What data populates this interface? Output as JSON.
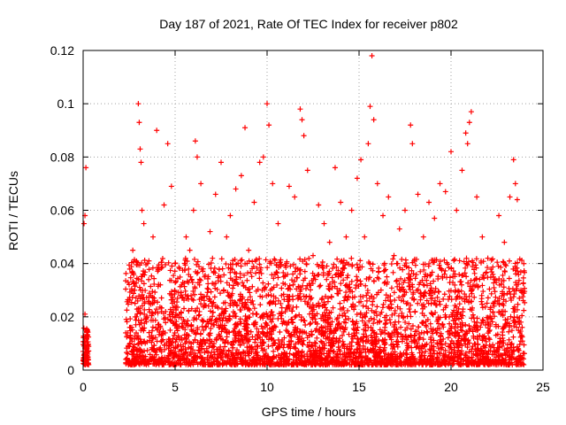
{
  "chart_data": {
    "type": "scatter",
    "title": "Day 187 of 2021, Rate Of TEC Index for receiver p802",
    "xlabel": "GPS time / hours",
    "ylabel": "ROTI / TECUs",
    "xlim": [
      0,
      25
    ],
    "ylim": [
      0,
      0.12
    ],
    "xticks": [
      0,
      5,
      10,
      15,
      20,
      25
    ],
    "xtick_labels": [
      "0",
      "5",
      "10",
      "15",
      "20",
      "25"
    ],
    "yticks": [
      0,
      0.02,
      0.04,
      0.06,
      0.08,
      0.1,
      0.12
    ],
    "ytick_labels": [
      "0",
      "0.02",
      "0.04",
      "0.06",
      "0.08",
      "0.1",
      "0.12"
    ],
    "grid": true,
    "marker": "+",
    "color": "#ff0000",
    "series": [
      {
        "points": [
          [
            0.05,
            0.009
          ],
          [
            0.1,
            0.005
          ],
          [
            0.15,
            0.012
          ],
          [
            0.2,
            0.015
          ],
          [
            0.1,
            0.021
          ],
          [
            0.05,
            0.055
          ],
          [
            0.1,
            0.058
          ],
          [
            0.15,
            0.076
          ],
          [
            0.2,
            0.008
          ],
          [
            0.25,
            0.006
          ],
          [
            2.6,
            0.012
          ],
          [
            2.7,
            0.045
          ],
          [
            2.8,
            0.03
          ],
          [
            2.9,
            0.02
          ],
          [
            3.0,
            0.1
          ],
          [
            3.05,
            0.093
          ],
          [
            3.1,
            0.083
          ],
          [
            3.15,
            0.078
          ],
          [
            3.2,
            0.06
          ],
          [
            3.3,
            0.055
          ],
          [
            3.5,
            0.04
          ],
          [
            3.6,
            0.025
          ],
          [
            3.8,
            0.05
          ],
          [
            4.0,
            0.09
          ],
          [
            4.2,
            0.032
          ],
          [
            4.4,
            0.062
          ],
          [
            4.6,
            0.085
          ],
          [
            4.8,
            0.069
          ],
          [
            5.0,
            0.04
          ],
          [
            5.3,
            0.028
          ],
          [
            5.6,
            0.05
          ],
          [
            5.8,
            0.045
          ],
          [
            6.0,
            0.06
          ],
          [
            6.1,
            0.086
          ],
          [
            6.2,
            0.08
          ],
          [
            6.4,
            0.07
          ],
          [
            6.6,
            0.035
          ],
          [
            6.9,
            0.052
          ],
          [
            7.2,
            0.066
          ],
          [
            7.5,
            0.078
          ],
          [
            7.8,
            0.05
          ],
          [
            8.0,
            0.058
          ],
          [
            8.3,
            0.068
          ],
          [
            8.6,
            0.073
          ],
          [
            8.8,
            0.091
          ],
          [
            9.0,
            0.045
          ],
          [
            9.3,
            0.063
          ],
          [
            9.6,
            0.078
          ],
          [
            9.8,
            0.08
          ],
          [
            10.0,
            0.1
          ],
          [
            10.1,
            0.092
          ],
          [
            10.3,
            0.07
          ],
          [
            10.6,
            0.055
          ],
          [
            10.9,
            0.035
          ],
          [
            11.2,
            0.069
          ],
          [
            11.5,
            0.065
          ],
          [
            11.8,
            0.098
          ],
          [
            11.9,
            0.094
          ],
          [
            12.0,
            0.088
          ],
          [
            12.2,
            0.075
          ],
          [
            12.5,
            0.043
          ],
          [
            12.8,
            0.062
          ],
          [
            13.1,
            0.055
          ],
          [
            13.4,
            0.048
          ],
          [
            13.7,
            0.076
          ],
          [
            14.0,
            0.063
          ],
          [
            14.3,
            0.05
          ],
          [
            14.6,
            0.06
          ],
          [
            14.9,
            0.072
          ],
          [
            15.1,
            0.079
          ],
          [
            15.3,
            0.05
          ],
          [
            15.5,
            0.085
          ],
          [
            15.6,
            0.099
          ],
          [
            15.7,
            0.118
          ],
          [
            15.8,
            0.094
          ],
          [
            16.0,
            0.07
          ],
          [
            16.3,
            0.058
          ],
          [
            16.6,
            0.065
          ],
          [
            16.9,
            0.043
          ],
          [
            17.2,
            0.053
          ],
          [
            17.5,
            0.06
          ],
          [
            17.8,
            0.092
          ],
          [
            17.9,
            0.085
          ],
          [
            18.2,
            0.066
          ],
          [
            18.5,
            0.05
          ],
          [
            18.8,
            0.063
          ],
          [
            19.1,
            0.057
          ],
          [
            19.4,
            0.07
          ],
          [
            19.7,
            0.067
          ],
          [
            20.0,
            0.082
          ],
          [
            20.3,
            0.06
          ],
          [
            20.6,
            0.075
          ],
          [
            20.8,
            0.089
          ],
          [
            20.9,
            0.085
          ],
          [
            21.0,
            0.093
          ],
          [
            21.1,
            0.097
          ],
          [
            21.4,
            0.065
          ],
          [
            21.7,
            0.05
          ],
          [
            22.0,
            0.042
          ],
          [
            22.3,
            0.035
          ],
          [
            22.6,
            0.058
          ],
          [
            22.9,
            0.048
          ],
          [
            23.2,
            0.065
          ],
          [
            23.4,
            0.079
          ],
          [
            23.5,
            0.07
          ],
          [
            23.6,
            0.064
          ],
          [
            23.8,
            0.03
          ]
        ]
      }
    ],
    "band": {
      "segments": [
        {
          "x_from": 0.0,
          "x_to": 0.3,
          "y_from": 0.002,
          "y_to": 0.016
        },
        {
          "x_from": 2.3,
          "x_to": 24.0,
          "y_from": 0.002,
          "y_to": 0.042
        }
      ],
      "seed": 187
    }
  }
}
